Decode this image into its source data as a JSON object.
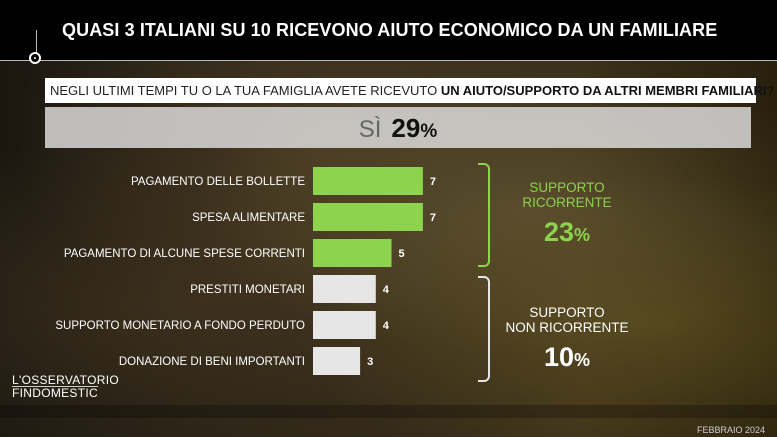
{
  "header": {
    "title": "QUASI 3 ITALIANI SU 10 RICEVONO AIUTO ECONOMICO DA UN FAMILIARE"
  },
  "question": {
    "text_plain": "NEGLI ULTIMI TEMPI TU O LA TUA FAMIGLIA AVETE RICEVUTO ",
    "text_bold": "UN AIUTO/SUPPORTO DA ALTRI MEMBRI FAMILIARI?"
  },
  "si": {
    "label": "SÌ",
    "value": "29",
    "unit": "%"
  },
  "segments": [
    {
      "label_line1": "SUPPORTO",
      "label_line2": "RICORRENTE",
      "value": "23",
      "unit": "%",
      "color": "#8dd34e"
    },
    {
      "label_line1": "SUPPORTO",
      "label_line2": "NON RICORRENTE",
      "value": "10",
      "unit": "%",
      "color": "#ffffff"
    }
  ],
  "chart_data": {
    "type": "bar",
    "orientation": "horizontal",
    "categories": [
      "PAGAMENTO DELLE BOLLETTE",
      "SPESA ALIMENTARE",
      "PAGAMENTO DI ALCUNE SPESE CORRENTI",
      "PRESTITI MONETARI",
      "SUPPORTO MONETARIO A FONDO PERDUTO",
      "DONAZIONE DI BENI IMPORTANTI"
    ],
    "values": [
      7,
      7,
      5,
      4,
      4,
      3
    ],
    "group": [
      "ricorrente",
      "ricorrente",
      "ricorrente",
      "non ricorrente",
      "non ricorrente",
      "non ricorrente"
    ],
    "colors": {
      "ricorrente": "#8dd34e",
      "non ricorrente": "#e6e6e6"
    }
  },
  "footer": {
    "logo_line1": "L'OSSERVATORIO",
    "logo_line2": "FINDOMESTIC",
    "date": "FEBBRAIO 2024"
  }
}
